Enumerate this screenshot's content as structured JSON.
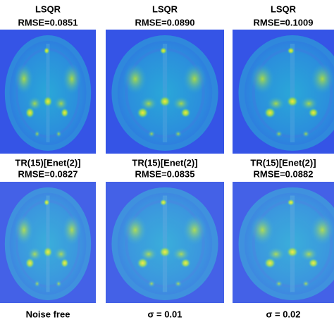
{
  "rows": [
    {
      "method": "LSQR",
      "rmse": [
        "RMSE=0.0851",
        "RMSE=0.0890",
        "RMSE=0.1009"
      ]
    },
    {
      "method": "TR(15)[Enet(2)]",
      "rmse": [
        "RMSE=0.0827",
        "RMSE=0.0835",
        "RMSE=0.0882"
      ]
    }
  ],
  "columns": [
    "Noise free",
    "σ = 0.01",
    "σ = 0.02"
  ]
}
